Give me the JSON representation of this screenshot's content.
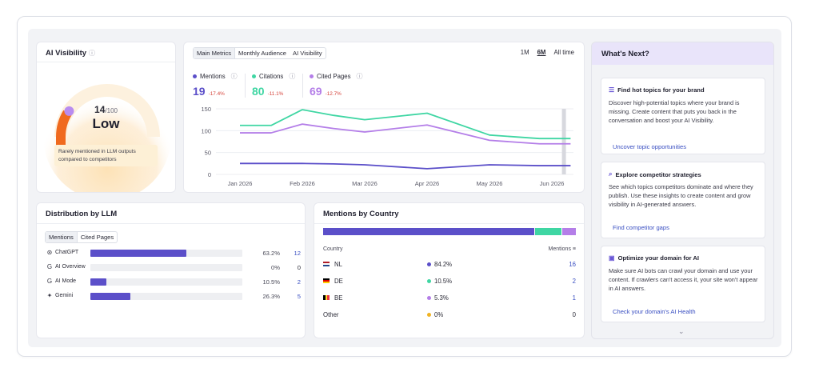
{
  "visibility": {
    "title": "AI Visibility",
    "score": "14",
    "score_max": "/100",
    "level": "Low",
    "note": "Rarely mentioned in LLM outputs compared to competitors",
    "score_fraction": 0.14
  },
  "metrics": {
    "tabs": [
      "Main Metrics",
      "Monthly Audience",
      "AI Visibility"
    ],
    "ranges": [
      "1M",
      "6M",
      "All time"
    ],
    "items": [
      {
        "label": "Mentions",
        "value": "19",
        "change": "-17.4%",
        "color": "#5b4fc9"
      },
      {
        "label": "Citations",
        "value": "80",
        "change": "-11.1%",
        "color": "#3fd6a3"
      },
      {
        "label": "Cited Pages",
        "value": "69",
        "change": "-12.7%",
        "color": "#b47ee8"
      }
    ]
  },
  "chart_data": {
    "type": "line",
    "x": [
      "Jan 2026",
      "Feb 2026",
      "Mar 2026",
      "Apr 2026",
      "May 2026",
      "Jun 2026"
    ],
    "x_ticks": [
      "Jan 2026",
      "Feb 2026",
      "Mar 2026",
      "Apr 2026",
      "May 2026",
      "Jun 2026"
    ],
    "y_ticks": [
      "0",
      "50",
      "100",
      "150"
    ],
    "ylim": [
      0,
      150
    ],
    "grid": true,
    "series": [
      {
        "name": "Mentions",
        "color": "#5b4fc9",
        "points": [
          [
            0.0,
            25
          ],
          [
            0.5,
            25
          ],
          [
            1.0,
            25
          ],
          [
            1.5,
            24
          ],
          [
            2.0,
            22
          ],
          [
            3.0,
            13
          ],
          [
            4.0,
            22
          ],
          [
            4.8,
            20
          ],
          [
            5.3,
            20
          ]
        ]
      },
      {
        "name": "Citations",
        "color": "#3fd6a3",
        "points": [
          [
            0.0,
            112
          ],
          [
            0.5,
            112
          ],
          [
            1.0,
            148
          ],
          [
            1.5,
            135
          ],
          [
            2.0,
            125
          ],
          [
            3.0,
            140
          ],
          [
            4.0,
            90
          ],
          [
            4.8,
            82
          ],
          [
            5.3,
            82
          ]
        ]
      },
      {
        "name": "Cited Pages",
        "color": "#b47ee8",
        "points": [
          [
            0.0,
            95
          ],
          [
            0.5,
            95
          ],
          [
            1.0,
            115
          ],
          [
            1.5,
            105
          ],
          [
            2.0,
            97
          ],
          [
            3.0,
            113
          ],
          [
            4.0,
            78
          ],
          [
            4.8,
            70
          ],
          [
            5.3,
            70
          ]
        ]
      }
    ]
  },
  "distribution": {
    "title": "Distribution by LLM",
    "tabs": [
      "Mentions",
      "Cited Pages"
    ],
    "rows": [
      {
        "icon": "chatgpt-icon",
        "glyph": "⊛",
        "name": "ChatGPT",
        "pct": "63.2%",
        "share": 0.632,
        "count": "12"
      },
      {
        "icon": "google-icon",
        "glyph": "G",
        "name": "AI Overview",
        "pct": "0%",
        "share": 0.0,
        "count": "0"
      },
      {
        "icon": "google-icon",
        "glyph": "G",
        "name": "AI Mode",
        "pct": "10.5%",
        "share": 0.105,
        "count": "2"
      },
      {
        "icon": "gemini-icon",
        "glyph": "✦",
        "name": "Gemini",
        "pct": "26.3%",
        "share": 0.263,
        "count": "5"
      }
    ]
  },
  "country": {
    "title": "Mentions by Country",
    "col_country": "Country",
    "col_mentions": "Mentions",
    "rows": [
      {
        "code": "NL",
        "share_label": "84.2%",
        "share": 0.842,
        "count": "16",
        "color": "#5b4fc9",
        "flag": [
          "#ae1c28",
          "#ffffff",
          "#21468b"
        ],
        "flag_dir": "column"
      },
      {
        "code": "DE",
        "share_label": "10.5%",
        "share": 0.105,
        "count": "2",
        "color": "#3fd6a3",
        "flag": [
          "#000000",
          "#dd0000",
          "#ffce00"
        ],
        "flag_dir": "column"
      },
      {
        "code": "BE",
        "share_label": "5.3%",
        "share": 0.053,
        "count": "1",
        "color": "#b47ee8",
        "flag": [
          "#000000",
          "#fdda24",
          "#ef3340"
        ],
        "flag_dir": "row"
      },
      {
        "code": "Other",
        "share_label": "0%",
        "share": 0.0,
        "count": "0",
        "color": "#f0b323",
        "flag": [],
        "flag_dir": "row"
      }
    ]
  },
  "next": {
    "title": "What's Next?",
    "tips": [
      {
        "icon": "topics-icon",
        "glyph": "☰",
        "title": "Find hot topics for your brand",
        "desc": "Discover high-potential topics where your brand is missing. Create content that puts you back in the conversation and boost your AI Visibility.",
        "action": "Uncover topic opportunities"
      },
      {
        "icon": "competitor-icon",
        "glyph": "⌕",
        "title": "Explore competitor strategies",
        "desc": "See which topics competitors dominate and where they publish. Use these insights to create content and grow visibility in AI-generated answers.",
        "action": "Find competitor gaps"
      },
      {
        "icon": "domain-icon",
        "glyph": "▣",
        "title": "Optimize your domain for AI",
        "desc": "Make sure AI bots can crawl your domain and use your content. If crawlers can't access it, your site won't appear in AI answers.",
        "action": "Check your domain's AI Health"
      }
    ]
  }
}
